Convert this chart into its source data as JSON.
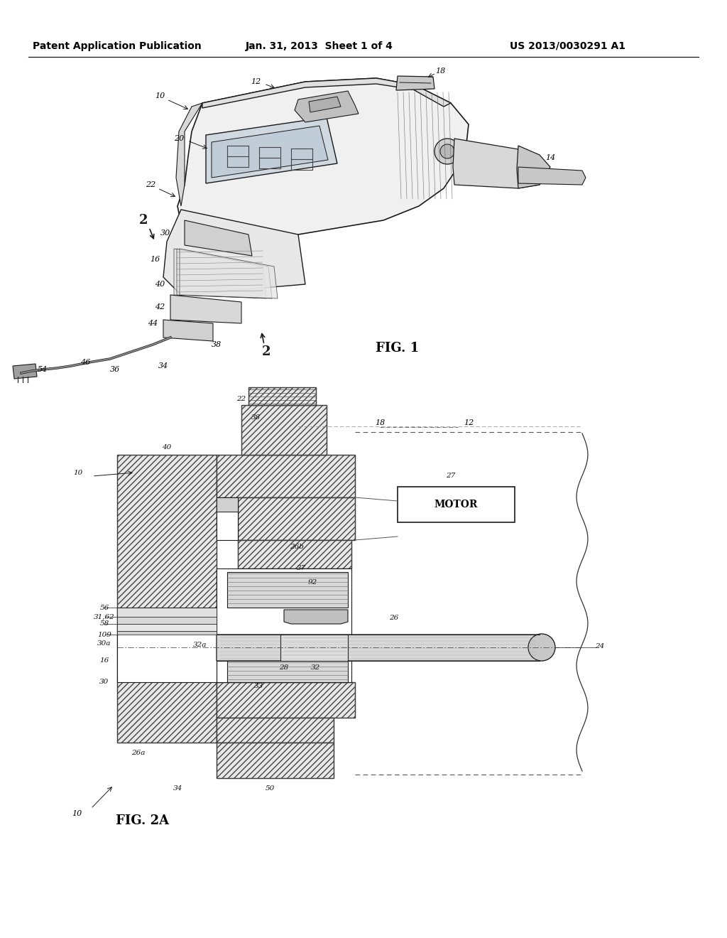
{
  "background_color": "#ffffff",
  "header_left": "Patent Application Publication",
  "header_center": "Jan. 31, 2013  Sheet 1 of 4",
  "header_right": "US 2013/0030291 A1",
  "fig1_label": "FIG. 1",
  "fig2a_label": "FIG. 2A",
  "motor_label": "MOTOR",
  "header_fontsize": 10,
  "label_fontsize": 8,
  "fig_label_fontsize": 13,
  "ref_fontsize": 8
}
